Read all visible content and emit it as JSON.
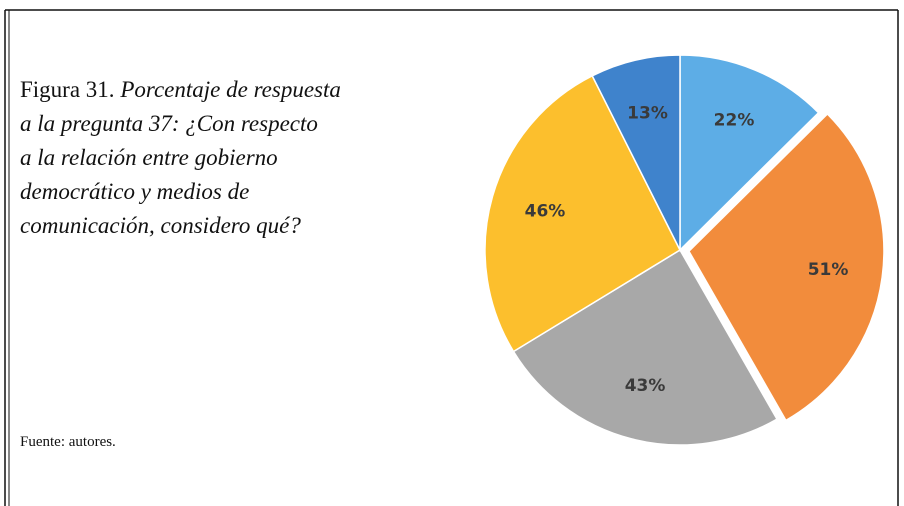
{
  "caption": {
    "label": "Figura 31.",
    "lines": [
      "Porcentaje de respuesta",
      "a la pregunta 37: ¿Con respecto",
      "a la relación entre gobierno",
      "democrático y medios de",
      "comunicación, considero qué?"
    ]
  },
  "source": "Fuente: autores.",
  "chart_data": {
    "type": "pie",
    "values": [
      22,
      51,
      43,
      46,
      13
    ],
    "value_labels": [
      "22%",
      "51%",
      "43%",
      "46%",
      "13%"
    ],
    "colors": [
      "#5dade6",
      "#f28c3c",
      "#a8a8a8",
      "#fcbf2d",
      "#3f83cc"
    ],
    "exploded": [
      1
    ]
  }
}
